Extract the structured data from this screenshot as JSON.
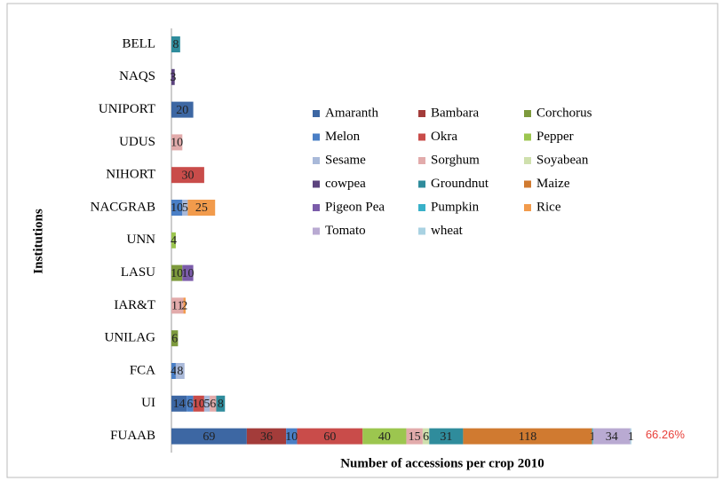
{
  "chart_data": {
    "type": "stacked-bar-horizontal",
    "y_label": "Institutions",
    "x_label": "Number of accessions per crop 2010",
    "annotation": "66.26%",
    "categories": [
      "BELL",
      "NAQS",
      "UNIPORT",
      "UDUS",
      "NIHORT",
      "NACGRAB",
      "UNN",
      "LASU",
      "IAR&T",
      "UNILAG",
      "FCA",
      "UI",
      "FUAAB"
    ],
    "series": [
      {
        "name": "Amaranth",
        "color": "#3d67a3",
        "values": [
          null,
          null,
          20,
          null,
          null,
          null,
          null,
          null,
          null,
          null,
          null,
          14,
          69
        ]
      },
      {
        "name": "Bambara",
        "color": "#a33c3a",
        "values": [
          null,
          null,
          null,
          null,
          null,
          null,
          null,
          null,
          null,
          null,
          null,
          null,
          36
        ]
      },
      {
        "name": "Corchorus",
        "color": "#7d9a3d",
        "values": [
          null,
          null,
          null,
          null,
          null,
          null,
          null,
          10,
          null,
          6,
          null,
          null,
          null
        ]
      },
      {
        "name": "Melon",
        "color": "#4a7fc6",
        "values": [
          null,
          null,
          null,
          null,
          null,
          10,
          null,
          null,
          null,
          null,
          4,
          6,
          10
        ]
      },
      {
        "name": "Okra",
        "color": "#c94c4a",
        "values": [
          null,
          null,
          null,
          null,
          30,
          null,
          null,
          null,
          null,
          null,
          null,
          10,
          60
        ]
      },
      {
        "name": "Pepper",
        "color": "#9cc64f",
        "values": [
          null,
          null,
          null,
          null,
          null,
          null,
          4,
          null,
          null,
          null,
          null,
          null,
          40
        ]
      },
      {
        "name": "Sesame",
        "color": "#a9b9d9",
        "values": [
          null,
          null,
          null,
          null,
          null,
          5,
          null,
          null,
          null,
          null,
          8,
          5,
          null
        ]
      },
      {
        "name": "Sorghum",
        "color": "#e2abab",
        "values": [
          null,
          null,
          null,
          10,
          null,
          null,
          null,
          null,
          11,
          null,
          null,
          6,
          15
        ]
      },
      {
        "name": "Soyabean",
        "color": "#cfe0ad",
        "values": [
          null,
          null,
          null,
          null,
          null,
          null,
          null,
          null,
          null,
          null,
          null,
          null,
          6
        ]
      },
      {
        "name": "cowpea",
        "color": "#5c437e",
        "values": [
          null,
          3,
          null,
          null,
          null,
          null,
          null,
          null,
          null,
          null,
          null,
          null,
          null
        ]
      },
      {
        "name": "Groundnut",
        "color": "#2f8c9c",
        "values": [
          8,
          null,
          null,
          null,
          null,
          null,
          null,
          null,
          null,
          null,
          null,
          8,
          31
        ]
      },
      {
        "name": "Maize",
        "color": "#d07a30",
        "values": [
          null,
          null,
          null,
          null,
          null,
          null,
          null,
          null,
          null,
          null,
          null,
          null,
          118
        ]
      },
      {
        "name": "Pigeon Pea",
        "color": "#7b5caa",
        "values": [
          null,
          null,
          null,
          null,
          null,
          null,
          null,
          10,
          null,
          null,
          null,
          null,
          null
        ]
      },
      {
        "name": "Pumpkin",
        "color": "#39b1c9",
        "values": [
          null,
          null,
          null,
          null,
          null,
          null,
          null,
          null,
          null,
          null,
          null,
          null,
          1
        ]
      },
      {
        "name": "Rice",
        "color": "#f29b4c",
        "values": [
          null,
          null,
          null,
          null,
          null,
          25,
          null,
          null,
          2,
          null,
          null,
          null,
          null
        ]
      },
      {
        "name": "Tomato",
        "color": "#b9aad2",
        "values": [
          null,
          null,
          null,
          null,
          null,
          null,
          null,
          null,
          null,
          null,
          null,
          null,
          34
        ]
      },
      {
        "name": "wheat",
        "color": "#a9d2e2",
        "values": [
          null,
          null,
          null,
          null,
          null,
          null,
          null,
          null,
          null,
          null,
          null,
          null,
          1
        ]
      }
    ]
  }
}
